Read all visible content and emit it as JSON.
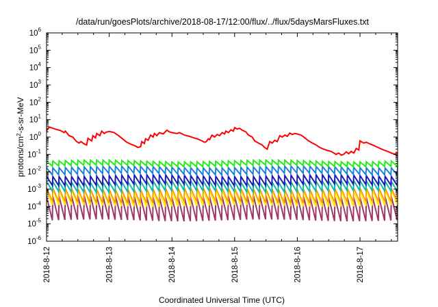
{
  "chart_data": {
    "type": "line",
    "title": "/data/run/goesPlots/archive/2018-08-17/12:00/flux/../flux/5daysMarsFluxes.txt",
    "xlabel": "Coordinated Universal Time (UTC)",
    "ylabel": "protons/cm2-s-sr-MeV",
    "ylabel_parts": {
      "pre": "protons/cm",
      "sup": "2",
      "post": "-s-sr-MeV"
    },
    "yscale": "log",
    "ylim": [
      1e-06,
      1000000.0
    ],
    "xlim": [
      0,
      5.6
    ],
    "grid": false,
    "legend": "none",
    "x_ticks": [
      {
        "x": 0,
        "label": "2018-8-12"
      },
      {
        "x": 1,
        "label": "2018-8-13"
      },
      {
        "x": 2,
        "label": "2018-8-14"
      },
      {
        "x": 3,
        "label": "2018-8-15"
      },
      {
        "x": 4,
        "label": "2018-8-16"
      },
      {
        "x": 5,
        "label": "2018-8-17"
      }
    ],
    "y_ticks": [
      {
        "exp": -6,
        "label_base": "10",
        "label_exp": "-6"
      },
      {
        "exp": -5,
        "label_base": "10",
        "label_exp": "-5"
      },
      {
        "exp": -4,
        "label_base": "10",
        "label_exp": "-4"
      },
      {
        "exp": -3,
        "label_base": "10",
        "label_exp": "-3"
      },
      {
        "exp": -2,
        "label_base": "10",
        "label_exp": "-2"
      },
      {
        "exp": -1,
        "label_base": "10",
        "label_exp": "-1"
      },
      {
        "exp": 0,
        "label_base": "10",
        "label_exp": "0"
      },
      {
        "exp": 1,
        "label_base": "10",
        "label_exp": "1"
      },
      {
        "exp": 2,
        "label_base": "10",
        "label_exp": "2"
      },
      {
        "exp": 3,
        "label_base": "10",
        "label_exp": "3"
      },
      {
        "exp": 4,
        "label_base": "10",
        "label_exp": "4"
      },
      {
        "exp": 5,
        "label_base": "10",
        "label_exp": "5"
      },
      {
        "exp": 6,
        "label_base": "10",
        "label_exp": "6"
      }
    ],
    "series": [
      {
        "color": "#ff0000",
        "width": 2,
        "points": [
          [
            0,
            2.2
          ],
          [
            0.04,
            3.8
          ],
          [
            0.15,
            2.8
          ],
          [
            0.22,
            2.4
          ],
          [
            0.28,
            1.8
          ],
          [
            0.3,
            2.2
          ],
          [
            0.36,
            1.2
          ],
          [
            0.42,
            1.0
          ],
          [
            0.44,
            0.8
          ],
          [
            0.48,
            0.55
          ],
          [
            0.52,
            0.45
          ],
          [
            0.55,
            0.55
          ],
          [
            0.6,
            0.4
          ],
          [
            0.64,
            0.35
          ],
          [
            0.66,
            0.85
          ],
          [
            0.72,
            0.6
          ],
          [
            0.74,
            1.2
          ],
          [
            0.78,
            0.9
          ],
          [
            0.8,
            1.6
          ],
          [
            0.85,
            1.2
          ],
          [
            0.88,
            2.2
          ],
          [
            0.92,
            1.6
          ],
          [
            0.95,
            1.9
          ],
          [
            1.0,
            2.1
          ],
          [
            1.08,
            1.8
          ],
          [
            1.15,
            1.2
          ],
          [
            1.22,
            0.75
          ],
          [
            1.28,
            0.5
          ],
          [
            1.35,
            0.38
          ],
          [
            1.42,
            0.3
          ],
          [
            1.46,
            0.25
          ],
          [
            1.5,
            0.28
          ],
          [
            1.52,
            0.55
          ],
          [
            1.56,
            0.42
          ],
          [
            1.58,
            0.8
          ],
          [
            1.62,
            0.65
          ],
          [
            1.66,
            1.3
          ],
          [
            1.7,
            1.0
          ],
          [
            1.72,
            1.6
          ],
          [
            1.76,
            1.2
          ],
          [
            1.8,
            1.8
          ],
          [
            1.86,
            1.5
          ],
          [
            1.92,
            2.5
          ],
          [
            1.96,
            2.0
          ],
          [
            2.0,
            1.8
          ],
          [
            2.08,
            1.6
          ],
          [
            2.12,
            1.8
          ],
          [
            2.2,
            1.3
          ],
          [
            2.28,
            1.1
          ],
          [
            2.35,
            0.9
          ],
          [
            2.42,
            0.75
          ],
          [
            2.48,
            0.6
          ],
          [
            2.52,
            0.5
          ],
          [
            2.55,
            0.55
          ],
          [
            2.58,
            0.8
          ],
          [
            2.6,
            0.7
          ],
          [
            2.64,
            1.3
          ],
          [
            2.68,
            1.0
          ],
          [
            2.72,
            1.4
          ],
          [
            2.76,
            1.2
          ],
          [
            2.8,
            1.8
          ],
          [
            2.84,
            1.5
          ],
          [
            2.86,
            2.2
          ],
          [
            2.9,
            1.8
          ],
          [
            2.94,
            2.6
          ],
          [
            2.98,
            2.2
          ],
          [
            3.0,
            3.5
          ],
          [
            3.04,
            2.9
          ],
          [
            3.08,
            3.2
          ],
          [
            3.12,
            2.5
          ],
          [
            3.18,
            2.0
          ],
          [
            3.22,
            1.3
          ],
          [
            3.28,
            1.0
          ],
          [
            3.32,
            0.6
          ],
          [
            3.38,
            0.45
          ],
          [
            3.44,
            0.35
          ],
          [
            3.48,
            0.25
          ],
          [
            3.52,
            0.2
          ],
          [
            3.56,
            0.55
          ],
          [
            3.6,
            0.45
          ],
          [
            3.64,
            0.65
          ],
          [
            3.68,
            0.55
          ],
          [
            3.72,
            1.2
          ],
          [
            3.76,
            1.0
          ],
          [
            3.8,
            1.3
          ],
          [
            3.84,
            1.1
          ],
          [
            3.88,
            1.7
          ],
          [
            3.92,
            1.4
          ],
          [
            3.96,
            1.6
          ],
          [
            4.0,
            1.5
          ],
          [
            4.06,
            1.3
          ],
          [
            4.12,
            0.9
          ],
          [
            4.18,
            0.6
          ],
          [
            4.24,
            0.45
          ],
          [
            4.3,
            0.35
          ],
          [
            4.36,
            0.25
          ],
          [
            4.42,
            0.2
          ],
          [
            4.48,
            0.17
          ],
          [
            4.54,
            0.15
          ],
          [
            4.58,
            0.12
          ],
          [
            4.62,
            0.1
          ],
          [
            4.66,
            0.12
          ],
          [
            4.7,
            0.09
          ],
          [
            4.74,
            0.1
          ],
          [
            4.78,
            0.14
          ],
          [
            4.82,
            0.11
          ],
          [
            4.86,
            0.15
          ],
          [
            4.9,
            0.12
          ],
          [
            4.94,
            0.22
          ],
          [
            4.98,
            0.18
          ],
          [
            5.0,
            0.6
          ],
          [
            5.06,
            0.45
          ],
          [
            5.1,
            0.5
          ],
          [
            5.16,
            0.4
          ],
          [
            5.2,
            0.35
          ],
          [
            5.26,
            0.28
          ],
          [
            5.32,
            0.22
          ],
          [
            5.38,
            0.18
          ],
          [
            5.44,
            0.15
          ],
          [
            5.5,
            0.12
          ],
          [
            5.56,
            0.1
          ],
          [
            5.58,
            0.13
          ],
          [
            5.6,
            0.11
          ]
        ]
      },
      {
        "color": "#22ee11",
        "width": 2,
        "sawtooth": {
          "hi": 0.042,
          "lo": 0.022,
          "period": 0.1
        }
      },
      {
        "color": "#1a7fe0",
        "width": 2,
        "sawtooth": {
          "hi": 0.019,
          "lo": 0.0075,
          "period": 0.1
        }
      },
      {
        "color": "#1a1ab8",
        "width": 2,
        "sawtooth": {
          "hi": 0.006,
          "lo": 0.0018,
          "period": 0.1
        }
      },
      {
        "color": "#11bba5",
        "width": 2,
        "sawtooth": {
          "hi": 0.0028,
          "lo": 0.00075,
          "period": 0.1
        }
      },
      {
        "color": "#ff8c00",
        "width": 1.5,
        "sawtooth": {
          "hi": 0.0011,
          "lo": 0.00018,
          "period": 0.1
        }
      },
      {
        "color": "#ffee00",
        "width": 2,
        "sawtooth": {
          "hi": 0.00085,
          "lo": 0.00011,
          "period": 0.1
        }
      },
      {
        "color": "#a0356a",
        "width": 2,
        "sawtooth": {
          "hi": 0.00038,
          "lo": 1.6e-05,
          "period": 0.1
        }
      }
    ]
  }
}
